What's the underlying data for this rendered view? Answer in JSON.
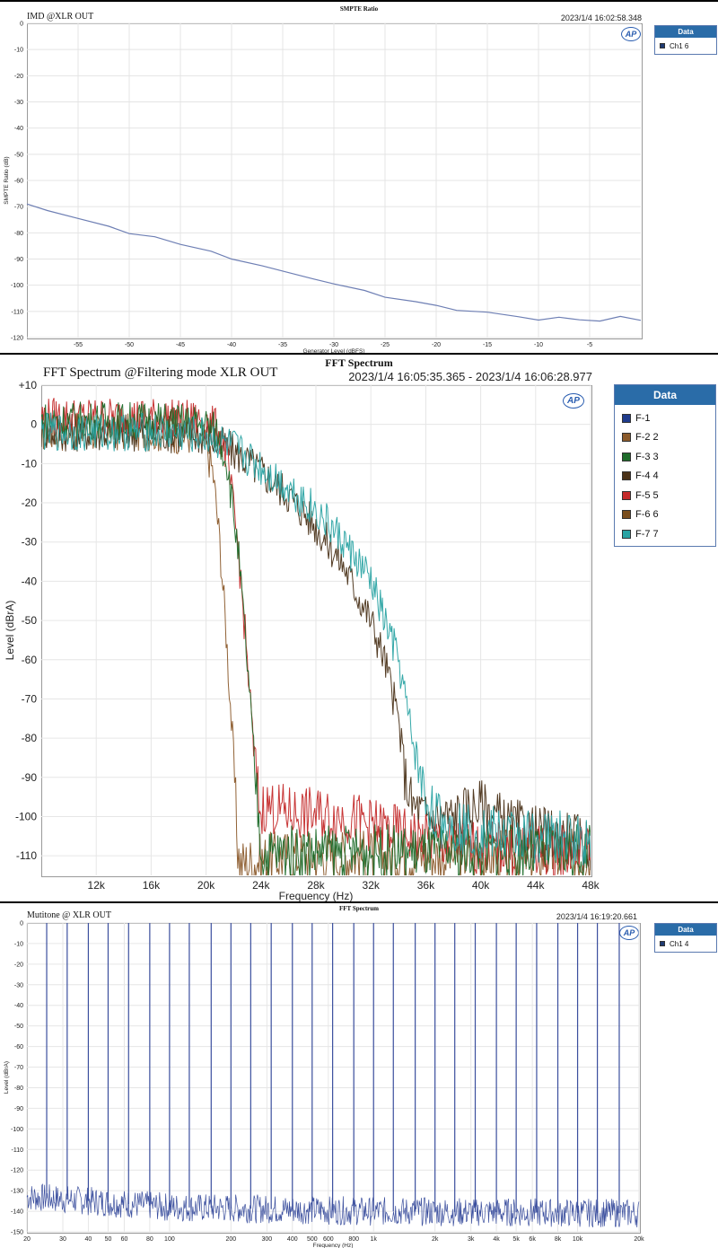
{
  "charts": [
    {
      "chart_data": {
        "type": "line",
        "caption": "SMPTE Ratio",
        "title": "IMD @XLR OUT",
        "timestamp": "2023/1/4 16:02:58.348",
        "xlabel": "Generator Level (dBFS)",
        "ylabel": "SMPTE Ratio (dB)",
        "xlim": [
          -60,
          0
        ],
        "ylim": [
          -120,
          0
        ],
        "xticks": [
          -55,
          -50,
          -45,
          -40,
          -35,
          -30,
          -25,
          -20,
          -15,
          -10,
          -5
        ],
        "yticks": [
          0,
          -10,
          -20,
          -30,
          -40,
          -50,
          -60,
          -70,
          -80,
          -90,
          -100,
          -110,
          -120
        ],
        "legend_title": "Data",
        "legend": [
          {
            "name": "Ch1",
            "index": "6",
            "color": "#1f3b73"
          }
        ],
        "series": [
          {
            "name": "Ch1",
            "color": "#6e7fb4",
            "x": [
              -60,
              -58,
              -55,
              -52,
              -50,
              -47.5,
              -45,
              -42,
              -40,
              -37,
              -35,
              -32,
              -30,
              -27,
              -25,
              -22,
              -20,
              -18,
              -15,
              -12,
              -10,
              -8,
              -6,
              -4,
              -2,
              0
            ],
            "y": [
              -69,
              -71.5,
              -74.5,
              -77.5,
              -80.3,
              -81.5,
              -84.4,
              -87,
              -90,
              -92.6,
              -94.6,
              -97.6,
              -99.5,
              -102,
              -104.6,
              -106.3,
              -107.7,
              -109.6,
              -110.3,
              -112,
              -113.3,
              -112.2,
              -113.2,
              -113.7,
              -111.9,
              -113.4
            ]
          }
        ]
      }
    },
    {
      "chart_data": {
        "type": "line",
        "caption": "FFT Spectrum",
        "title": "FFT Spectrum @Filtering mode XLR OUT",
        "timestamp": "2023/1/4 16:05:35.365 - 2023/1/4 16:06:28.977",
        "xlabel": "Frequency (Hz)",
        "ylabel": "Level (dBrA)",
        "xlim": [
          8000,
          48000
        ],
        "ylim": [
          -115,
          10
        ],
        "xticks": [
          12000,
          16000,
          20000,
          24000,
          28000,
          32000,
          36000,
          40000,
          44000,
          48000
        ],
        "xticklabels": [
          "12k",
          "16k",
          "20k",
          "24k",
          "28k",
          "32k",
          "36k",
          "40k",
          "44k",
          "48k"
        ],
        "yticks": [
          10,
          0,
          -10,
          -20,
          -30,
          -40,
          -50,
          -60,
          -70,
          -80,
          -90,
          -100,
          -110
        ],
        "yticklabels": [
          "+10",
          "0",
          "-10",
          "-20",
          "-30",
          "-40",
          "-50",
          "-60",
          "-70",
          "-80",
          "-90",
          "-100",
          "-110"
        ],
        "legend_title": "Data",
        "legend": [
          {
            "name": "F-1",
            "index": "",
            "color": "#1f3b8c"
          },
          {
            "name": "F-2",
            "index": "2",
            "color": "#8b5a2b"
          },
          {
            "name": "F-3",
            "index": "3",
            "color": "#1e6b2a"
          },
          {
            "name": "F-4",
            "index": "4",
            "color": "#4a3218"
          },
          {
            "name": "F-5",
            "index": "5",
            "color": "#c42a2a"
          },
          {
            "name": "F-6",
            "index": "6",
            "color": "#7a4e1e"
          },
          {
            "name": "F-7",
            "index": "7",
            "color": "#2aa3a3"
          }
        ],
        "series": [
          {
            "name": "F-2",
            "color": "#8b5a2b",
            "x": [
              8000,
              12000,
              16000,
              19000,
              20000,
              20500,
              21000,
              21500,
              22000,
              22300,
              22500,
              24000,
              26000,
              30000,
              34000,
              38000,
              42000,
              46000,
              48000
            ],
            "y": [
              -2,
              -2,
              -2,
              -3,
              -6,
              -12,
              -30,
              -55,
              -85,
              -108,
              -112,
              -111,
              -110,
              -110,
              -110,
              -110,
              -110,
              -110,
              -110
            ]
          },
          {
            "name": "F-4",
            "color": "#4a3218",
            "x": [
              8000,
              12000,
              16000,
              20000,
              22000,
              24000,
              26000,
              28000,
              30000,
              32000,
              33000,
              34000,
              34500,
              35000,
              36000,
              38000,
              40000,
              42000,
              44000,
              46000,
              48000
            ],
            "y": [
              -2,
              -2,
              -2,
              -3,
              -7,
              -12,
              -18,
              -26,
              -36,
              -50,
              -60,
              -75,
              -90,
              -97,
              -100,
              -100,
              -97,
              -102,
              -104,
              -105,
              -107
            ]
          },
          {
            "name": "F-5",
            "color": "#c42a2a",
            "x": [
              8000,
              12000,
              16000,
              20000,
              20800,
              21500,
              22300,
              23000,
              23500,
              24000,
              24200,
              26000,
              30000,
              34000,
              36000,
              40000,
              48000
            ],
            "y": [
              2,
              2,
              2,
              1,
              -1,
              -8,
              -30,
              -60,
              -85,
              -100,
              -97,
              -99,
              -100,
              -104,
              -106,
              -108,
              -109
            ]
          },
          {
            "name": "F-3",
            "color": "#1e6b2a",
            "x": [
              8000,
              12000,
              16000,
              20000,
              20800,
              21500,
              22300,
              23000,
              23500,
              24000,
              24200,
              26000,
              30000,
              34000,
              38000,
              42000,
              48000
            ],
            "y": [
              1,
              1,
              1,
              0,
              -2,
              -9,
              -31,
              -61,
              -86,
              -108,
              -110,
              -109,
              -109,
              -109,
              -109,
              -109,
              -109
            ]
          },
          {
            "name": "F-7",
            "color": "#2aa3a3",
            "x": [
              8000,
              12000,
              16000,
              20000,
              22000,
              24000,
              26000,
              28000,
              30000,
              32000,
              34000,
              35000,
              36000,
              37000,
              38000,
              40000,
              44000,
              48000
            ],
            "y": [
              -2,
              -2,
              -2,
              -3,
              -6,
              -11,
              -16,
              -22,
              -30,
              -40,
              -60,
              -80,
              -96,
              -101,
              -102,
              -104,
              -105,
              -106
            ]
          }
        ]
      }
    },
    {
      "chart_data": {
        "type": "line",
        "caption": "FFT Spectrum",
        "title": "Mutitone @ XLR OUT",
        "timestamp": "2023/1/4 16:19:20.661",
        "xlabel": "Frequency (Hz)",
        "ylabel": "Level (dBrA)",
        "xscale": "log",
        "xlim": [
          20,
          20000
        ],
        "ylim": [
          -150,
          0
        ],
        "xticks": [
          20,
          30,
          40,
          50,
          60,
          80,
          100,
          200,
          300,
          400,
          500,
          600,
          800,
          1000,
          2000,
          3000,
          4000,
          5000,
          6000,
          8000,
          10000,
          20000
        ],
        "xticklabels": [
          "20",
          "30",
          "40",
          "50",
          "60",
          "80",
          "100",
          "200",
          "300",
          "400",
          "500",
          "600",
          "800",
          "1k",
          "2k",
          "3k",
          "4k",
          "5k",
          "6k",
          "8k",
          "10k",
          "20k"
        ],
        "yticks": [
          0,
          -10,
          -20,
          -30,
          -40,
          -50,
          -60,
          -70,
          -80,
          -90,
          -100,
          -110,
          -120,
          -130,
          -140,
          -150
        ],
        "legend_title": "Data",
        "legend": [
          {
            "name": "Ch1",
            "index": "4",
            "color": "#1f3b73"
          }
        ],
        "series": [
          {
            "name": "Ch1",
            "color": "#3b4f9e",
            "tones_hz": [
              25,
              31.5,
              40,
              50,
              63,
              80,
              100,
              125,
              160,
              200,
              250,
              315,
              400,
              500,
              630,
              800,
              1000,
              1250,
              1600,
              2000,
              2500,
              3150,
              4000,
              5000,
              6300,
              8000,
              10000,
              12500,
              16000
            ],
            "tone_level": 0,
            "noise_floor": [
              {
                "x": 20,
                "y": -133
              },
              {
                "x": 40,
                "y": -135
              },
              {
                "x": 100,
                "y": -138
              },
              {
                "x": 1000,
                "y": -140
              },
              {
                "x": 20000,
                "y": -141
              }
            ]
          }
        ]
      }
    }
  ]
}
